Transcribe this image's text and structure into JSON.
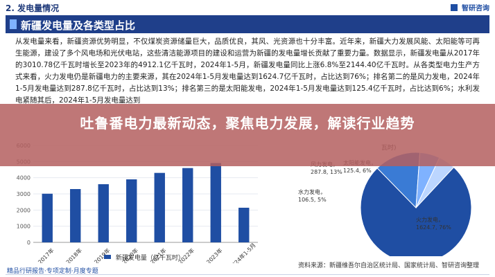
{
  "top": {
    "section_title": "2. 发电量情况",
    "brand": "智研咨询"
  },
  "header": {
    "title": "新疆发电量及各类型占比"
  },
  "body": {
    "paragraph": "从发电量来看，新疆资源优势明显，不仅煤炭资源储量巨大，品质优良，其风、光资源也十分丰富。近年来，新疆大力发展风能、太阳能等可再生能源，建设了多个风电场和光伏电站，这些清洁能源项目的建设和运营为新疆的发电量增长贡献了重要力量。数据显示，新疆发电量从2017年的3010.78亿千瓦时增长至2023年的4912.1亿千瓦时，2024年1-5月，新疆发电量同比上涨6.8%至2144.40亿千瓦时。从各类型电力生产方式来看，火力发电仍是新疆电力的主要来源，其在2024年1-5月发电量达到1624.7亿千瓦时，占比达到76%；排名第二的是风力发电，2024年1-5月发电量达到287.8亿千瓦时，占比达到13%；排名第三的是太阳能发电，2024年1-5月发电量达到125.4亿千瓦时，占比达到6%；水利发电紧随其后，2024年1-5月发电量达到"
  },
  "overlay": {
    "title": "吐鲁番电力最新动态，聚焦电力发展，解读行业趋势"
  },
  "chart_data": [
    {
      "type": "bar",
      "categories": [
        "2017年",
        "2018年",
        "2019年",
        "2020年",
        "2021年",
        "2022年",
        "2023年",
        "2024年1-5月"
      ],
      "series": [
        {
          "name": "新疆发电量（亿千瓦时）",
          "values": [
            3010.78,
            3300,
            3600,
            3900,
            4300,
            4600,
            4912.1,
            2144.4
          ]
        }
      ],
      "ylim": [
        0,
        6000
      ],
      "y_ticks": [
        "6000",
        "5000",
        "4000",
        "3000",
        "2000",
        "1000",
        "0"
      ],
      "legend_placement": "bottom",
      "color": "#1f4ea3"
    },
    {
      "type": "pie",
      "labels": [
        "火力发电",
        "风力发电",
        "太阳能发电",
        "水力发电"
      ],
      "values": [
        1624.7,
        287.8,
        125.4,
        106.5
      ],
      "data_labels": [
        "1624.7, 76%",
        "287.8, 13%",
        "125.4, 6%",
        "106.5, 5%"
      ],
      "colors": [
        "#1f4ea3",
        "#3a7bd5",
        "#7fb2ff",
        "#bcd6ff"
      ],
      "partial_label": "瓦时)"
    }
  ],
  "source": {
    "text": "资料来源：新疆维吾尔自治区统计局、国家统计局、智研咨询整理"
  },
  "footer": {
    "brand": "精品行研报告·专项定制·月度专题"
  }
}
